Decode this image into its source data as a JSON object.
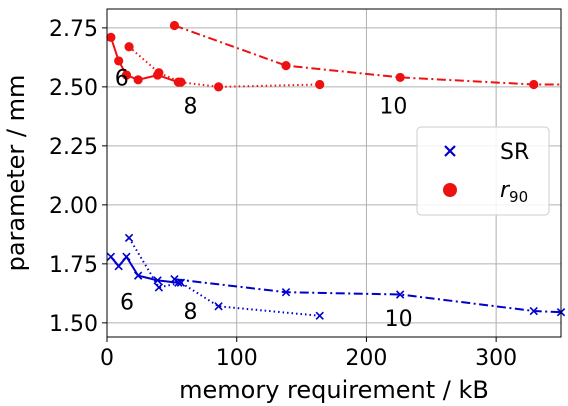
{
  "chart_data": {
    "type": "line",
    "xlabel": "memory requirement / kB",
    "ylabel": "parameter / mm",
    "xlim": [
      0,
      350
    ],
    "ylim": [
      1.44,
      2.83
    ],
    "xticks": [
      0,
      100,
      200,
      300
    ],
    "xtick_labels": [
      "0",
      "100",
      "200",
      "300"
    ],
    "yticks": [
      1.5,
      1.75,
      2.0,
      2.25,
      2.5,
      2.75
    ],
    "ytick_labels": [
      "1.50",
      "1.75",
      "2.00",
      "2.25",
      "2.50",
      "2.75"
    ],
    "grid": true,
    "legend": {
      "placement": "center-right",
      "entries": [
        {
          "label": "SR",
          "marker": "x",
          "color": "#0000cc"
        },
        {
          "label": "r",
          "subscript": "90",
          "marker": "o",
          "color": "#ee1111"
        }
      ]
    },
    "series": [
      {
        "name": "SR",
        "group": "6",
        "linestyle": "solid",
        "color": "#0000cc",
        "marker": "x",
        "x": [
          3,
          9,
          15,
          24,
          39,
          55
        ],
        "y": [
          1.78,
          1.74,
          1.78,
          1.7,
          1.68,
          1.67
        ]
      },
      {
        "name": "SR",
        "group": "8",
        "linestyle": "dotted",
        "color": "#0000cc",
        "marker": "x",
        "x": [
          17,
          40,
          57,
          86,
          164
        ],
        "y": [
          1.86,
          1.65,
          1.67,
          1.57,
          1.53
        ]
      },
      {
        "name": "SR",
        "group": "10",
        "linestyle": "dashdot",
        "color": "#0000cc",
        "marker": "x",
        "x": [
          52,
          138,
          226,
          329,
          350
        ],
        "y": [
          1.685,
          1.63,
          1.62,
          1.55,
          1.545
        ]
      },
      {
        "name": "r90",
        "group": "6",
        "linestyle": "solid",
        "color": "#ee1111",
        "marker": "o",
        "x": [
          3,
          9,
          15,
          24,
          39,
          55
        ],
        "y": [
          2.71,
          2.61,
          2.55,
          2.53,
          2.55,
          2.52
        ]
      },
      {
        "name": "r90",
        "group": "8",
        "linestyle": "dotted",
        "color": "#ee1111",
        "marker": "o",
        "x": [
          17,
          40,
          57,
          86,
          164
        ],
        "y": [
          2.67,
          2.56,
          2.52,
          2.5,
          2.51
        ]
      },
      {
        "name": "r90",
        "group": "10",
        "linestyle": "dashdot",
        "color": "#ee1111",
        "marker": "o",
        "x": [
          52,
          138,
          226,
          329,
          350
        ],
        "y": [
          2.76,
          2.59,
          2.54,
          2.51,
          2.51
        ]
      }
    ],
    "annotations": [
      {
        "text": "6",
        "x": 6,
        "y": 2.54
      },
      {
        "text": "8",
        "x": 59,
        "y": 2.42
      },
      {
        "text": "10",
        "x": 210,
        "y": 2.42
      },
      {
        "text": "6",
        "x": 10,
        "y": 1.59
      },
      {
        "text": "8",
        "x": 59,
        "y": 1.55
      },
      {
        "text": "10",
        "x": 214,
        "y": 1.52
      }
    ],
    "marker_at_line_end": [
      true,
      true,
      true,
      true,
      true,
      false
    ]
  }
}
